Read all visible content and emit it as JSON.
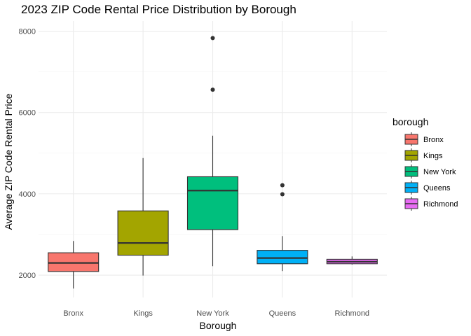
{
  "chart_data": {
    "type": "boxplot",
    "title": "2023 ZIP Code Rental Price Distribution by Borough",
    "xlabel": "Borough",
    "ylabel": "Average ZIP Code Rental Price",
    "ylim": [
      1450,
      8250
    ],
    "yticks": [
      2000,
      4000,
      6000,
      8000
    ],
    "grid": true,
    "legend": {
      "title": "borough",
      "position": "right"
    },
    "categories": [
      "Bronx",
      "Kings",
      "New York",
      "Queens",
      "Richmond"
    ],
    "colors": [
      "#F8766D",
      "#A3A500",
      "#00BF7D",
      "#00B0F6",
      "#E76BF3"
    ],
    "boxes": [
      {
        "name": "Bronx",
        "whisker_low": 1670,
        "q1": 2090,
        "median": 2300,
        "q3": 2550,
        "whisker_high": 2840,
        "outliers": []
      },
      {
        "name": "Kings",
        "whisker_low": 1990,
        "q1": 2490,
        "median": 2790,
        "q3": 3580,
        "whisker_high": 4880,
        "outliers": []
      },
      {
        "name": "New York",
        "whisker_low": 2220,
        "q1": 3120,
        "median": 4080,
        "q3": 4420,
        "whisker_high": 5430,
        "outliers": [
          6560,
          7830
        ]
      },
      {
        "name": "Queens",
        "whisker_low": 2100,
        "q1": 2280,
        "median": 2420,
        "q3": 2610,
        "whisker_high": 2960,
        "outliers": [
          3990,
          4210
        ]
      },
      {
        "name": "Richmond",
        "whisker_low": 2260,
        "q1": 2280,
        "median": 2330,
        "q3": 2390,
        "whisker_high": 2460,
        "outliers": []
      }
    ]
  }
}
